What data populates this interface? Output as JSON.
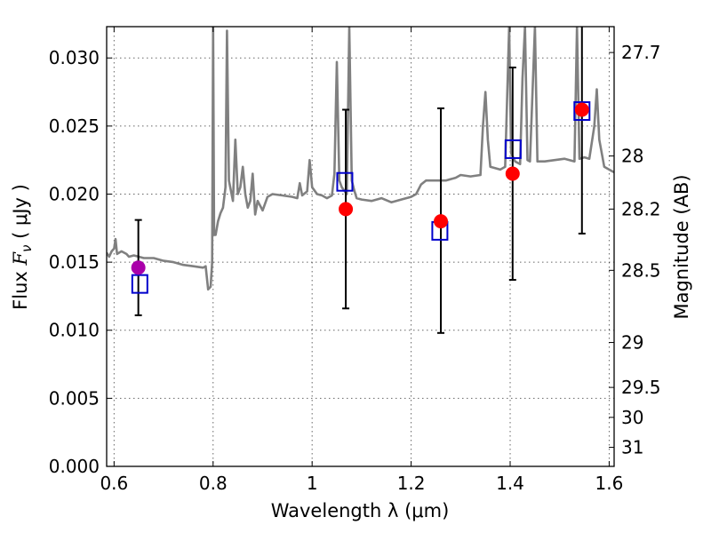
{
  "chart_data": {
    "type": "scatter",
    "xlabel": "Wavelength  λ (μm)",
    "ylabel": "Flux  F_ν  ( μJy )",
    "ylabel_parts": {
      "prefix": "Flux  ",
      "symbol": "F",
      "subscript": "ν",
      "suffix": "  ( μJy )"
    },
    "y2label": "Magnitude (AB)",
    "xlim": [
      0.585,
      1.61
    ],
    "ylim": [
      0.0,
      0.0323
    ],
    "grid": true,
    "x_ticks": [
      0.6,
      0.8,
      1.0,
      1.2,
      1.4,
      1.6
    ],
    "x_tick_labels": [
      "0.6",
      "0.8",
      "1",
      "1.2",
      "1.4",
      "1.6"
    ],
    "y_ticks": [
      0.0,
      0.005,
      0.01,
      0.015,
      0.02,
      0.025,
      0.03
    ],
    "y_tick_labels": [
      "0.000",
      "0.005",
      "0.010",
      "0.015",
      "0.020",
      "0.025",
      "0.030"
    ],
    "y2_ticks": [
      {
        "label": "27.7",
        "flux": 0.0304
      },
      {
        "label": "28",
        "flux": 0.0228
      },
      {
        "label": "28.2",
        "flux": 0.0189
      },
      {
        "label": "28.5",
        "flux": 0.0144
      },
      {
        "label": "29",
        "flux": 0.0091
      },
      {
        "label": "29.5",
        "flux": 0.0058
      },
      {
        "label": "30",
        "flux": 0.0036
      },
      {
        "label": "31",
        "flux": 0.0014
      }
    ],
    "colors": {
      "model": "#808080",
      "observed": "#ff0000",
      "first_observed": "#aa00aa",
      "model_box": "#0000cc",
      "errorbar": "#000000"
    },
    "series": [
      {
        "name": "model spectrum",
        "style": "line",
        "points": [
          [
            0.585,
            0.0157
          ],
          [
            0.59,
            0.0154
          ],
          [
            0.595,
            0.0158
          ],
          [
            0.6,
            0.016
          ],
          [
            0.603,
            0.0167
          ],
          [
            0.606,
            0.0156
          ],
          [
            0.615,
            0.0158
          ],
          [
            0.625,
            0.0156
          ],
          [
            0.63,
            0.0154
          ],
          [
            0.64,
            0.0155
          ],
          [
            0.65,
            0.0154
          ],
          [
            0.66,
            0.0153
          ],
          [
            0.68,
            0.0153
          ],
          [
            0.7,
            0.0151
          ],
          [
            0.72,
            0.015
          ],
          [
            0.74,
            0.0148
          ],
          [
            0.76,
            0.0147
          ],
          [
            0.78,
            0.0146
          ],
          [
            0.785,
            0.0147
          ],
          [
            0.79,
            0.013
          ],
          [
            0.795,
            0.0132
          ],
          [
            0.798,
            0.015
          ],
          [
            0.8,
            0.0323
          ],
          [
            0.802,
            0.017
          ],
          [
            0.805,
            0.017
          ],
          [
            0.81,
            0.018
          ],
          [
            0.815,
            0.0186
          ],
          [
            0.82,
            0.019
          ],
          [
            0.825,
            0.0205
          ],
          [
            0.828,
            0.032
          ],
          [
            0.832,
            0.021
          ],
          [
            0.84,
            0.0195
          ],
          [
            0.845,
            0.024
          ],
          [
            0.85,
            0.02
          ],
          [
            0.855,
            0.0205
          ],
          [
            0.86,
            0.022
          ],
          [
            0.865,
            0.02
          ],
          [
            0.87,
            0.019
          ],
          [
            0.875,
            0.0195
          ],
          [
            0.88,
            0.0215
          ],
          [
            0.885,
            0.0185
          ],
          [
            0.89,
            0.0195
          ],
          [
            0.9,
            0.0188
          ],
          [
            0.91,
            0.0198
          ],
          [
            0.92,
            0.02
          ],
          [
            0.94,
            0.0199
          ],
          [
            0.96,
            0.0198
          ],
          [
            0.97,
            0.0197
          ],
          [
            0.975,
            0.0208
          ],
          [
            0.98,
            0.0199
          ],
          [
            0.99,
            0.0202
          ],
          [
            0.995,
            0.0225
          ],
          [
            1.0,
            0.0205
          ],
          [
            1.01,
            0.02
          ],
          [
            1.02,
            0.0199
          ],
          [
            1.03,
            0.0197
          ],
          [
            1.04,
            0.0199
          ],
          [
            1.045,
            0.0215
          ],
          [
            1.05,
            0.0297
          ],
          [
            1.055,
            0.021
          ],
          [
            1.06,
            0.0205
          ],
          [
            1.07,
            0.02
          ],
          [
            1.075,
            0.0323
          ],
          [
            1.08,
            0.021
          ],
          [
            1.085,
            0.0203
          ],
          [
            1.09,
            0.0197
          ],
          [
            1.1,
            0.0196
          ],
          [
            1.12,
            0.0195
          ],
          [
            1.14,
            0.0197
          ],
          [
            1.16,
            0.0194
          ],
          [
            1.18,
            0.0196
          ],
          [
            1.2,
            0.0198
          ],
          [
            1.21,
            0.02
          ],
          [
            1.22,
            0.0207
          ],
          [
            1.23,
            0.021
          ],
          [
            1.25,
            0.021
          ],
          [
            1.27,
            0.021
          ],
          [
            1.29,
            0.0212
          ],
          [
            1.3,
            0.0214
          ],
          [
            1.32,
            0.0213
          ],
          [
            1.34,
            0.0214
          ],
          [
            1.345,
            0.025
          ],
          [
            1.35,
            0.0275
          ],
          [
            1.355,
            0.024
          ],
          [
            1.36,
            0.022
          ],
          [
            1.38,
            0.0218
          ],
          [
            1.39,
            0.022
          ],
          [
            1.398,
            0.0323
          ],
          [
            1.402,
            0.023
          ],
          [
            1.41,
            0.0224
          ],
          [
            1.42,
            0.0222
          ],
          [
            1.425,
            0.0285
          ],
          [
            1.43,
            0.0323
          ],
          [
            1.435,
            0.0225
          ],
          [
            1.44,
            0.0224
          ],
          [
            1.45,
            0.0323
          ],
          [
            1.455,
            0.0224
          ],
          [
            1.47,
            0.0224
          ],
          [
            1.49,
            0.0225
          ],
          [
            1.51,
            0.0226
          ],
          [
            1.53,
            0.0224
          ],
          [
            1.535,
            0.0323
          ],
          [
            1.54,
            0.0226
          ],
          [
            1.55,
            0.0227
          ],
          [
            1.56,
            0.0226
          ],
          [
            1.57,
            0.025
          ],
          [
            1.575,
            0.0277
          ],
          [
            1.58,
            0.024
          ],
          [
            1.59,
            0.022
          ],
          [
            1.6,
            0.0218
          ],
          [
            1.61,
            0.0216
          ]
        ]
      },
      {
        "name": "model photometry",
        "style": "open-square",
        "points": [
          [
            0.652,
            0.0134
          ],
          [
            1.066,
            0.0209
          ],
          [
            1.258,
            0.0173
          ],
          [
            1.406,
            0.0233
          ],
          [
            1.545,
            0.0261
          ]
        ]
      },
      {
        "name": "observed photometry",
        "style": "filled-circle",
        "points": [
          {
            "x": 0.649,
            "y": 0.0146,
            "err_low": 0.0111,
            "err_high": 0.0181
          },
          {
            "x": 1.068,
            "y": 0.0189,
            "err_low": 0.0116,
            "err_high": 0.0262
          },
          {
            "x": 1.26,
            "y": 0.018,
            "err_low": 0.0098,
            "err_high": 0.0263
          },
          {
            "x": 1.405,
            "y": 0.0215,
            "err_low": 0.0137,
            "err_high": 0.0293
          },
          {
            "x": 1.545,
            "y": 0.0262,
            "err_low": 0.0171,
            "err_high": 0.0323
          }
        ]
      }
    ]
  }
}
